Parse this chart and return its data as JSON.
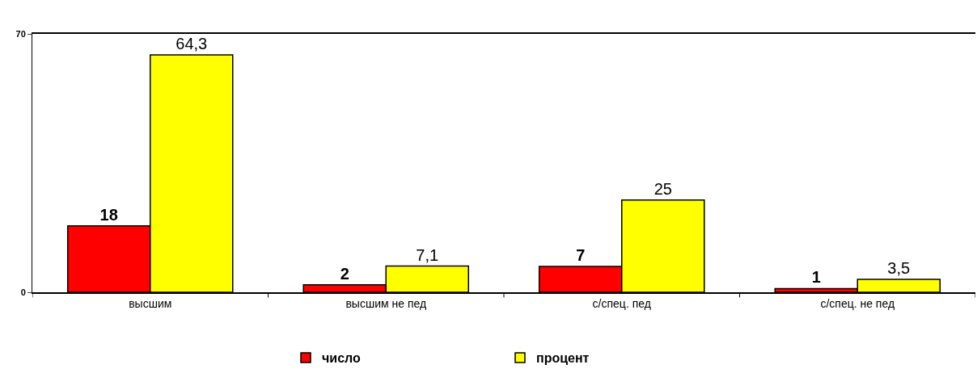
{
  "chart_data": {
    "type": "bar",
    "categories": [
      "высшим",
      "высшим не пед",
      "с/спец. пед",
      "с/спец. не пед"
    ],
    "series": [
      {
        "name": "число",
        "color": "#ff0000",
        "values": [
          18,
          2,
          7,
          1
        ],
        "value_labels": [
          "18",
          "2",
          "7",
          "1"
        ]
      },
      {
        "name": "процент",
        "color": "#ffff00",
        "values": [
          64.3,
          7.1,
          25,
          3.5
        ],
        "value_labels": [
          "64,3",
          "7,1",
          "25",
          "3,5"
        ]
      }
    ],
    "ylim": [
      0,
      70
    ],
    "yticks": [
      0,
      70
    ],
    "legend": "bottom"
  }
}
